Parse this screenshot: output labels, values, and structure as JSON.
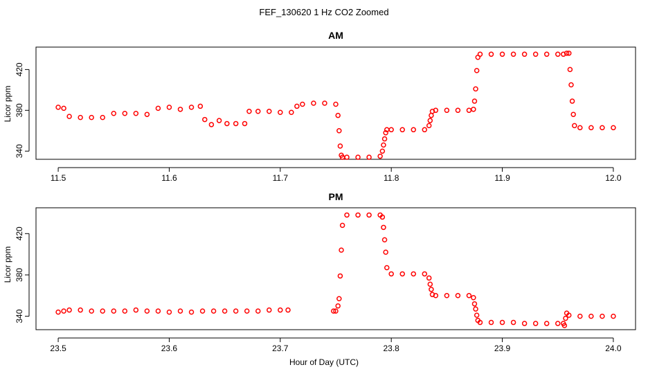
{
  "chart_data": {
    "title": "FEF_130620  1 Hz CO2 Zoomed",
    "xlabel": "Hour of Day (UTC)",
    "point_color": "#ff0000",
    "panels": [
      {
        "type": "scatter",
        "title": "AM",
        "ylabel": "Licor ppm",
        "xlim": [
          11.48,
          12.02
        ],
        "ylim": [
          332,
          442
        ],
        "xticks": [
          "11.5",
          "11.6",
          "11.7",
          "11.8",
          "11.9",
          "12.0"
        ],
        "yticks": [
          "340",
          "380",
          "420"
        ],
        "series": [
          {
            "x": [
              11.5,
              11.505,
              11.51,
              11.52,
              11.53,
              11.54,
              11.55,
              11.56,
              11.57,
              11.58,
              11.59,
              11.6,
              11.61,
              11.62,
              11.628,
              11.632,
              11.638,
              11.645,
              11.652,
              11.66,
              11.668,
              11.672,
              11.68,
              11.69,
              11.7,
              11.71,
              11.715,
              11.72,
              11.73,
              11.74,
              11.75,
              11.752,
              11.753,
              11.754,
              11.755,
              11.756,
              11.76,
              11.77,
              11.78,
              11.79,
              11.792,
              11.793,
              11.794,
              11.795,
              11.796,
              11.8,
              11.81,
              11.82,
              11.83,
              11.834,
              11.835,
              11.836,
              11.837,
              11.84,
              11.85,
              11.86,
              11.87,
              11.874,
              11.875,
              11.876,
              11.877,
              11.878,
              11.88,
              11.89,
              11.9,
              11.91,
              11.92,
              11.93,
              11.94,
              11.95,
              11.955,
              11.958,
              11.96,
              11.961,
              11.962,
              11.963,
              11.964,
              11.965,
              11.97,
              11.98,
              11.99,
              12.0
            ],
            "y": [
              383,
              382,
              374,
              373,
              373,
              373,
              377,
              377,
              377,
              376,
              382,
              383,
              381,
              383,
              384,
              371,
              366,
              370,
              367,
              367,
              367,
              379,
              379,
              379,
              378,
              378,
              384,
              386,
              387,
              387,
              386,
              375,
              360,
              345,
              336,
              334,
              334,
              334,
              334,
              335,
              340,
              346,
              352,
              358,
              361,
              361,
              361,
              361,
              361,
              365,
              370,
              375,
              379,
              380,
              380,
              380,
              380,
              381,
              389,
              401,
              419,
              432,
              435,
              435,
              435,
              435,
              435,
              435,
              435,
              435,
              435,
              436,
              436,
              420,
              405,
              389,
              376,
              365,
              363,
              363,
              363,
              363
            ]
          }
        ]
      },
      {
        "type": "scatter",
        "title": "PM",
        "ylabel": "Licor ppm",
        "xlim": [
          23.48,
          24.02
        ],
        "ylim": [
          327,
          445
        ],
        "xticks": [
          "23.5",
          "23.6",
          "23.7",
          "23.8",
          "23.9",
          "24.0"
        ],
        "yticks": [
          "340",
          "380",
          "420"
        ],
        "series": [
          {
            "x": [
              23.5,
              23.505,
              23.51,
              23.52,
              23.53,
              23.54,
              23.55,
              23.56,
              23.57,
              23.58,
              23.59,
              23.6,
              23.61,
              23.62,
              23.63,
              23.64,
              23.65,
              23.66,
              23.67,
              23.68,
              23.69,
              23.7,
              23.707,
              23.748,
              23.75,
              23.752,
              23.753,
              23.754,
              23.755,
              23.756,
              23.76,
              23.77,
              23.78,
              23.79,
              23.792,
              23.793,
              23.794,
              23.795,
              23.796,
              23.8,
              23.81,
              23.82,
              23.83,
              23.834,
              23.835,
              23.836,
              23.837,
              23.84,
              23.85,
              23.86,
              23.87,
              23.874,
              23.875,
              23.876,
              23.877,
              23.878,
              23.88,
              23.89,
              23.9,
              23.91,
              23.92,
              23.93,
              23.94,
              23.95,
              23.955,
              23.956,
              23.957,
              23.958,
              23.96,
              23.97,
              23.98,
              23.99,
              24.0
            ],
            "y": [
              344,
              345,
              346,
              346,
              345,
              345,
              345,
              345,
              346,
              345,
              345,
              344,
              345,
              344,
              345,
              345,
              345,
              345,
              345,
              345,
              346,
              346,
              346,
              345,
              345,
              350,
              357,
              379,
              404,
              428,
              438,
              438,
              438,
              438,
              436,
              426,
              414,
              402,
              387,
              381,
              381,
              381,
              381,
              377,
              371,
              366,
              361,
              360,
              360,
              360,
              360,
              358,
              352,
              347,
              341,
              336,
              334,
              334,
              334,
              334,
              333,
              333,
              333,
              333,
              333,
              331,
              338,
              343,
              341,
              340,
              340,
              340,
              340
            ]
          }
        ]
      }
    ]
  }
}
